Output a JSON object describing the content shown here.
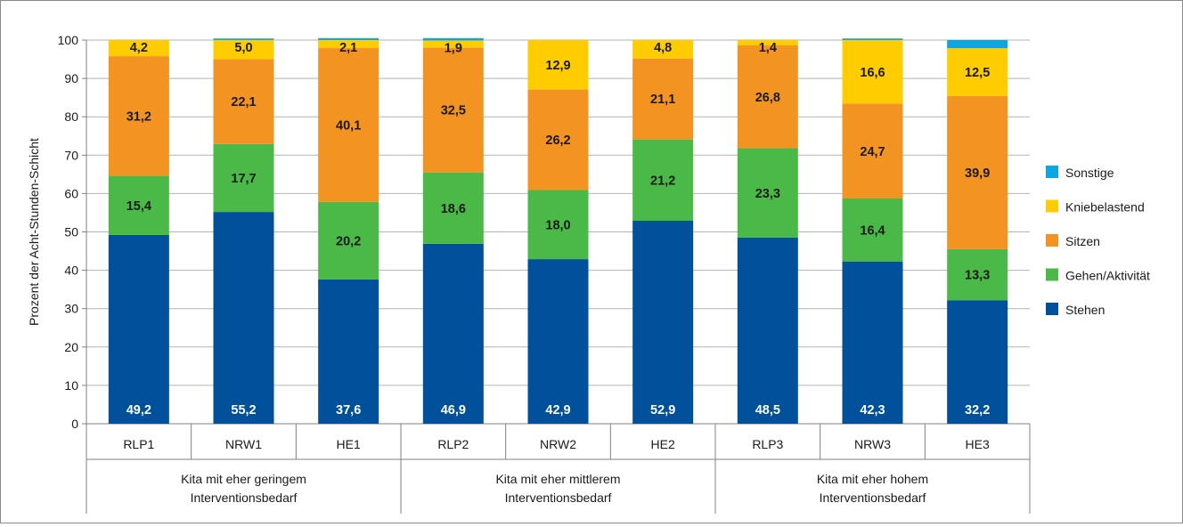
{
  "chart_data": {
    "type": "bar",
    "stacked": true,
    "ylabel": "Prozent der Acht-Stunden-Schicht",
    "ylim": [
      0,
      100
    ],
    "yticks": [
      0,
      10,
      20,
      30,
      40,
      50,
      60,
      70,
      80,
      90,
      100
    ],
    "grid": true,
    "legend_position": "right",
    "categories": [
      "RLP1",
      "NRW1",
      "HE1",
      "RLP2",
      "NRW2",
      "HE2",
      "RLP3",
      "NRW3",
      "HE3"
    ],
    "groups": [
      {
        "label": "Kita mit eher geringem Interventionsbedarf",
        "line1": "Kita mit eher geringem",
        "line2": "Interventionsbedarf",
        "span": 3
      },
      {
        "label": "Kita mit eher mittlerem Interventionsbedarf",
        "line1": "Kita mit eher mittlerem",
        "line2": "Interventionsbedarf",
        "span": 3
      },
      {
        "label": "Kita mit eher hohem Interventionsbedarf",
        "line1": "Kita mit eher hohem",
        "line2": "Interventionsbedarf",
        "span": 3
      }
    ],
    "series": [
      {
        "name": "Stehen",
        "color": "#00509b",
        "label_color": "#ffffff",
        "values": [
          49.2,
          55.2,
          37.6,
          46.9,
          42.9,
          52.9,
          48.5,
          42.3,
          32.2
        ],
        "labels": [
          "49,2",
          "55,2",
          "37,6",
          "46,9",
          "42,9",
          "52,9",
          "48,5",
          "42,3",
          "32,2"
        ]
      },
      {
        "name": "Gehen/Aktivität",
        "color": "#4ab947",
        "label_color": "#1a1a1a",
        "values": [
          15.4,
          17.7,
          20.2,
          18.6,
          18.0,
          21.2,
          23.3,
          16.4,
          13.3
        ],
        "labels": [
          "15,4",
          "17,7",
          "20,2",
          "18,6",
          "18,0",
          "21,2",
          "23,3",
          "16,4",
          "13,3"
        ]
      },
      {
        "name": "Sitzen",
        "color": "#f39322",
        "label_color": "#1a1a1a",
        "values": [
          31.2,
          22.1,
          40.1,
          32.5,
          26.2,
          21.1,
          26.8,
          24.7,
          39.9
        ],
        "labels": [
          "31,2",
          "22,1",
          "40,1",
          "32,5",
          "26,2",
          "21,1",
          "26,8",
          "24,7",
          "39,9"
        ]
      },
      {
        "name": "Kniebelastend",
        "color": "#ffcc00",
        "label_color": "#1a1a1a",
        "values": [
          4.2,
          5.0,
          2.1,
          1.9,
          12.9,
          4.8,
          1.4,
          16.6,
          12.5
        ],
        "labels": [
          "4,2",
          "5,0",
          "2,1",
          "1,9",
          "12,9",
          "4,8",
          "1,4",
          "16,6",
          "12,5"
        ]
      },
      {
        "name": "Sonstige",
        "color": "#0ea5e4",
        "label_color": "#1a1a1a",
        "values": [
          0.0,
          0.4,
          0.5,
          0.6,
          0.0,
          0.0,
          0.0,
          0.4,
          2.1
        ],
        "labels": [
          "",
          "",
          "",
          "",
          "",
          "",
          "",
          "",
          ""
        ]
      }
    ]
  }
}
